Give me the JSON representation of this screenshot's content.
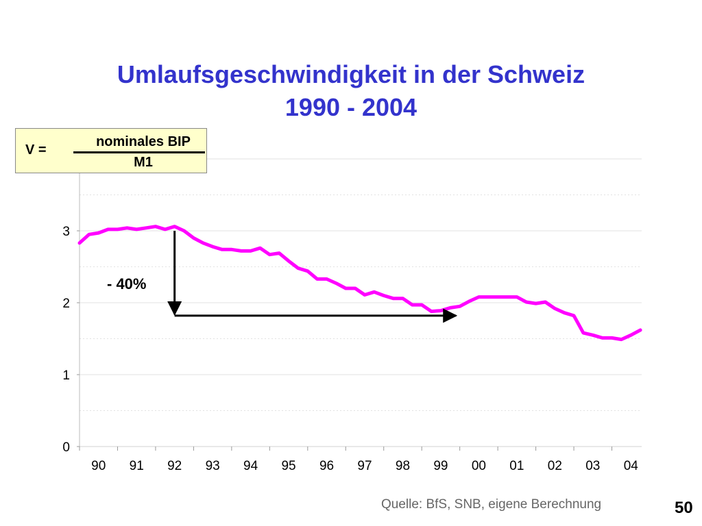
{
  "slide": {
    "title_line1": "Umlaufsgeschwindigkeit in der Schweiz",
    "title_line2": "1990 - 2004",
    "formula": {
      "lhs": "V =",
      "numerator": "nominales BIP",
      "denominator": "M1"
    },
    "source": "Quelle: BfS, SNB, eigene Berechnung",
    "page_number": "50"
  },
  "colors": {
    "title": "#3333cc",
    "series": "#ff00ff",
    "formula_bg": "#ffffcc",
    "source_text": "#666666"
  },
  "chart_data": {
    "type": "line",
    "title": "Umlaufsgeschwindigkeit in der Schweiz 1990 - 2004",
    "xlabel": "",
    "ylabel": "",
    "ylim": [
      0,
      4
    ],
    "xlim": [
      1990,
      2005
    ],
    "yticks": [
      0,
      1,
      2,
      3
    ],
    "categories": [
      "90",
      "91",
      "92",
      "93",
      "94",
      "95",
      "96",
      "97",
      "98",
      "99",
      "00",
      "01",
      "02",
      "03",
      "04"
    ],
    "grid": true,
    "series": [
      {
        "name": "",
        "x": [
          1990.0,
          1990.25,
          1990.5,
          1990.75,
          1991.0,
          1991.25,
          1991.5,
          1991.75,
          1992.0,
          1992.25,
          1992.5,
          1992.75,
          1993.0,
          1993.25,
          1993.5,
          1993.75,
          1994.0,
          1994.25,
          1994.5,
          1994.75,
          1995.0,
          1995.25,
          1995.5,
          1995.75,
          1996.0,
          1996.25,
          1996.5,
          1996.75,
          1997.0,
          1997.25,
          1997.5,
          1997.75,
          1998.0,
          1998.25,
          1998.5,
          1998.75,
          1999.0,
          1999.25,
          1999.5,
          1999.75,
          2000.0,
          2000.25,
          2000.5,
          2000.75,
          2001.0,
          2001.25,
          2001.5,
          2001.75,
          2002.0,
          2002.25,
          2002.5,
          2002.75,
          2003.0,
          2003.25,
          2003.5,
          2003.75,
          2004.0,
          2004.25,
          2004.5,
          2004.75
        ],
        "values": [
          2.83,
          2.95,
          2.97,
          3.02,
          3.02,
          3.04,
          3.02,
          3.04,
          3.06,
          3.02,
          3.06,
          3.0,
          2.9,
          2.83,
          2.78,
          2.74,
          2.74,
          2.72,
          2.72,
          2.76,
          2.67,
          2.69,
          2.58,
          2.48,
          2.44,
          2.33,
          2.33,
          2.27,
          2.2,
          2.2,
          2.11,
          2.15,
          2.1,
          2.06,
          2.06,
          1.97,
          1.97,
          1.88,
          1.89,
          1.93,
          1.95,
          2.02,
          2.08,
          2.08,
          2.08,
          2.08,
          2.08,
          2.01,
          1.99,
          2.01,
          1.92,
          1.86,
          1.82,
          1.58,
          1.55,
          1.51,
          1.51,
          1.49,
          1.55,
          1.62
        ]
      }
    ],
    "annotations": [
      {
        "text": "- 40%",
        "type": "decline-arrow",
        "from": {
          "x": 1992.5,
          "y": 3.0
        },
        "corner": {
          "x": 1992.5,
          "y": 1.82
        },
        "to": {
          "x": 1999.9,
          "y": 1.82
        }
      }
    ]
  }
}
